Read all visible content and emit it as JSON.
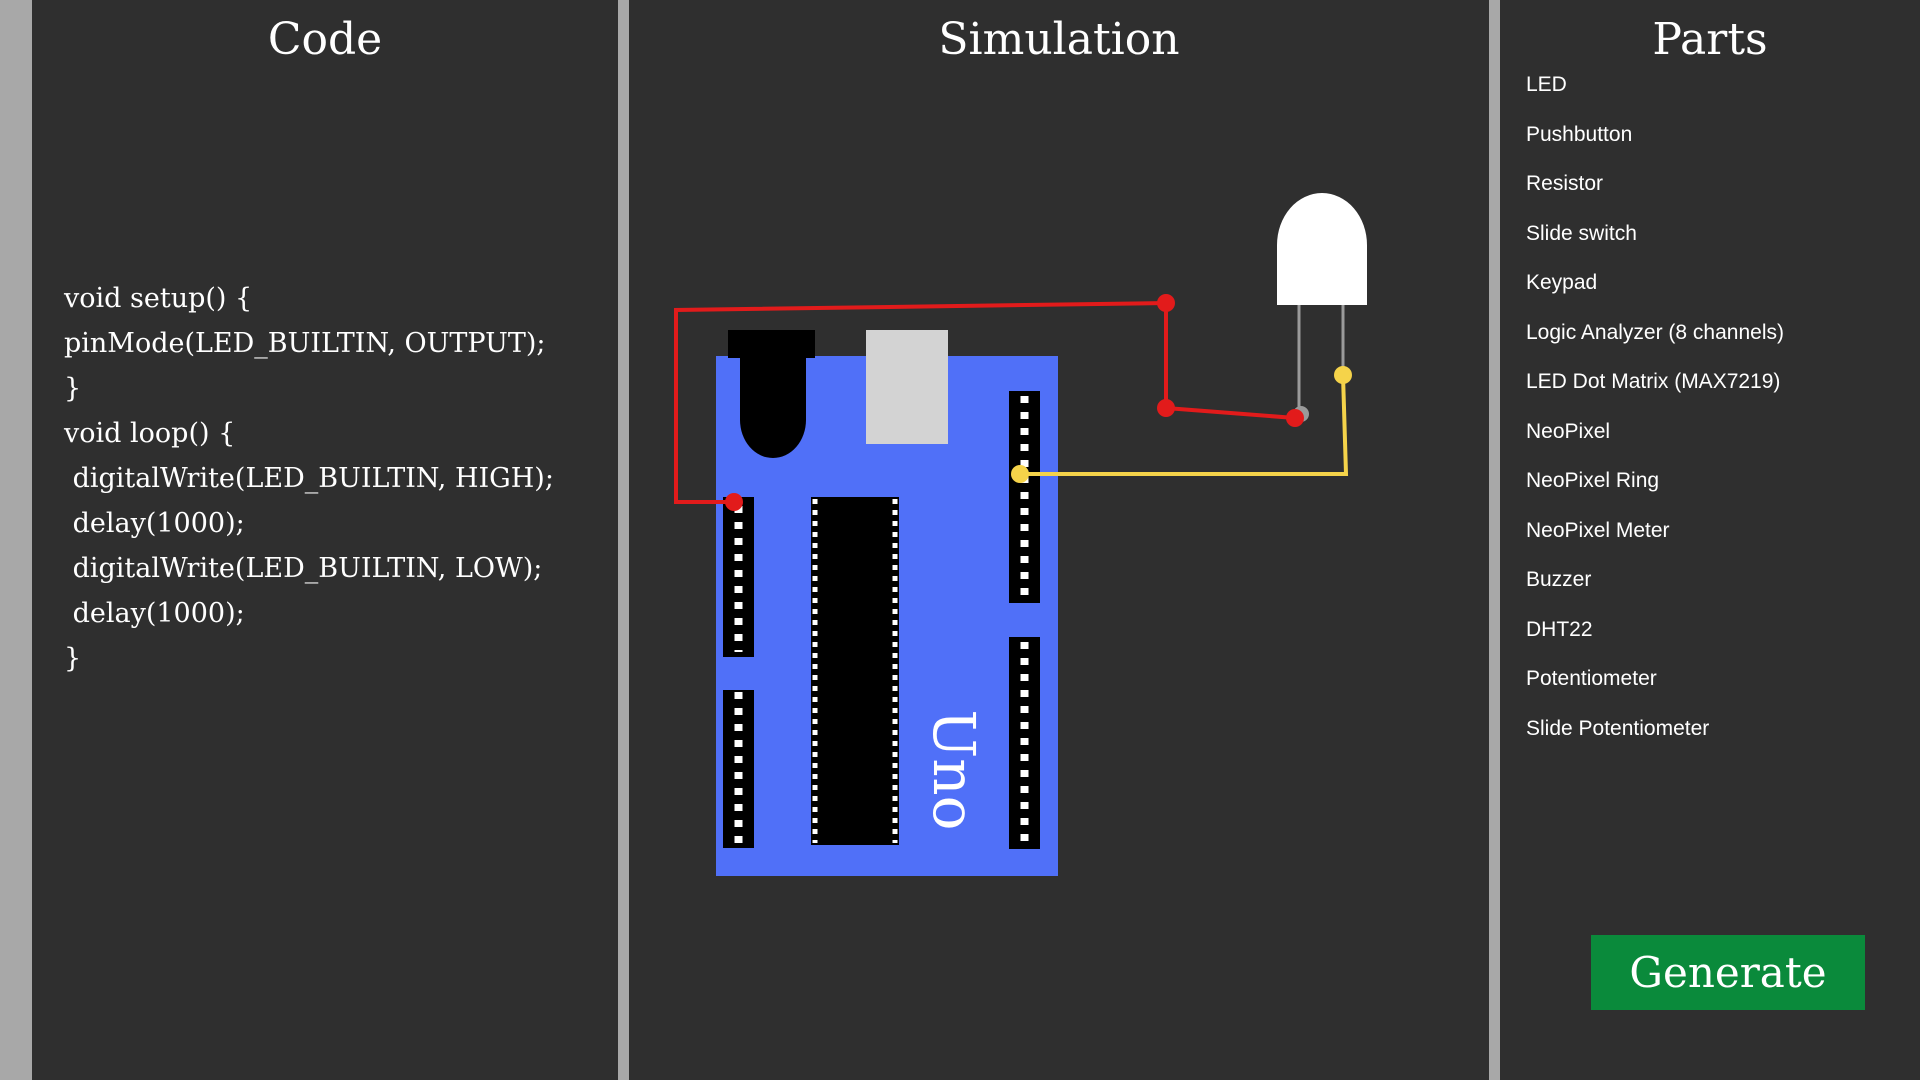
{
  "code_panel": {
    "title": "Code",
    "lines": [
      "void setup() {",
      "pinMode(LED_BUILTIN, OUTPUT);",
      "}",
      "void loop() {",
      " digitalWrite(LED_BUILTIN, HIGH);",
      " delay(1000);",
      " digitalWrite(LED_BUILTIN, LOW);",
      " delay(1000);",
      "}"
    ]
  },
  "simulation_panel": {
    "title": "Simulation",
    "board_label": "Uno",
    "colors": {
      "board": "#5070f8",
      "wire_red": "#e21b1b",
      "wire_yellow": "#f5d34a",
      "led_body": "#ffffff",
      "usb_port": "#d3d3d3",
      "chip": "#000000"
    }
  },
  "parts_panel": {
    "title": "Parts",
    "items": [
      "LED",
      "Pushbutton",
      "Resistor",
      "Slide switch",
      "Keypad",
      "Logic Analyzer (8 channels)",
      "LED Dot Matrix (MAX7219)",
      "NeoPixel",
      "NeoPixel Ring",
      "NeoPixel Meter",
      "Buzzer",
      "DHT22",
      "Potentiometer",
      "Slide Potentiometer"
    ],
    "generate_label": "Generate",
    "generate_color": "#0a8a3b"
  }
}
